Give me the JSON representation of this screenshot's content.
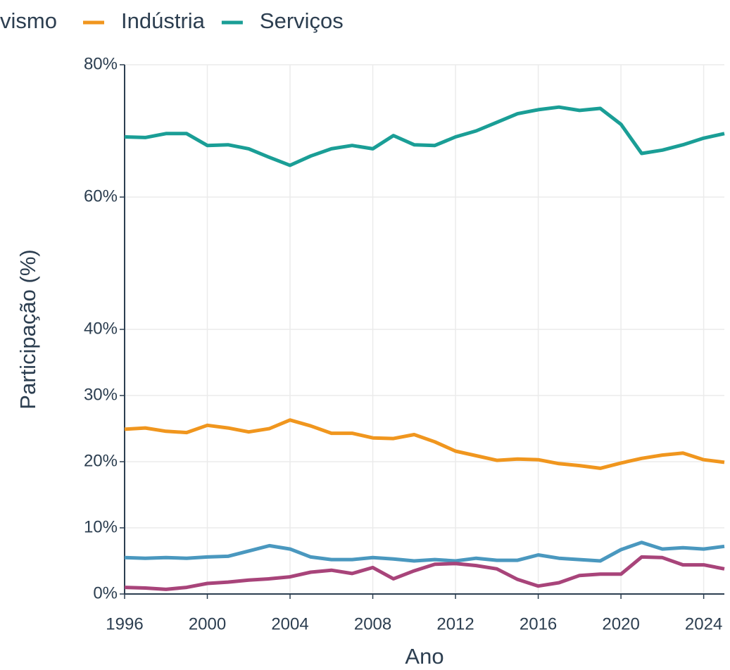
{
  "chart_data": {
    "type": "line",
    "legend_fragment": "vismo",
    "x_label": "Ano",
    "y_label": "Participação (%)",
    "x": [
      1996,
      1997,
      1998,
      1999,
      2000,
      2001,
      2002,
      2003,
      2004,
      2005,
      2006,
      2007,
      2008,
      2009,
      2010,
      2011,
      2012,
      2013,
      2014,
      2015,
      2016,
      2017,
      2018,
      2019,
      2020,
      2021,
      2022,
      2023,
      2024,
      2025
    ],
    "series": [
      {
        "name": "Indústria",
        "color": "#f0961e",
        "values": [
          24.9,
          25.1,
          24.6,
          24.4,
          25.5,
          25.1,
          24.5,
          25.0,
          26.3,
          25.4,
          24.3,
          24.3,
          23.6,
          23.5,
          24.1,
          23.0,
          21.6,
          20.9,
          20.2,
          20.4,
          20.3,
          19.7,
          19.4,
          19.0,
          19.8,
          20.5,
          21.0,
          21.3,
          20.3,
          19.9
        ]
      },
      {
        "name": "Serviços",
        "color": "#1a9e96",
        "values": [
          69.1,
          69.0,
          69.6,
          69.6,
          67.8,
          67.9,
          67.3,
          66.0,
          64.8,
          66.2,
          67.3,
          67.8,
          67.3,
          69.3,
          67.9,
          67.8,
          69.1,
          70.0,
          71.3,
          72.6,
          73.2,
          73.6,
          73.1,
          73.4,
          71.0,
          66.6,
          67.1,
          67.9,
          68.9,
          69.6
        ]
      },
      {
        "color": "#4a98bf",
        "values": [
          5.5,
          5.4,
          5.5,
          5.4,
          5.6,
          5.7,
          6.5,
          7.3,
          6.8,
          5.6,
          5.2,
          5.2,
          5.5,
          5.3,
          5.0,
          5.2,
          5.0,
          5.4,
          5.1,
          5.1,
          5.9,
          5.4,
          5.2,
          5.0,
          6.7,
          7.8,
          6.8,
          7.0,
          6.8,
          7.2
        ]
      },
      {
        "color": "#a8447a",
        "values": [
          1.0,
          0.9,
          0.7,
          1.0,
          1.6,
          1.8,
          2.1,
          2.3,
          2.6,
          3.3,
          3.6,
          3.1,
          4.0,
          2.3,
          3.5,
          4.5,
          4.6,
          4.3,
          3.8,
          2.2,
          1.2,
          1.7,
          2.8,
          3.0,
          3.0,
          5.6,
          5.5,
          4.4,
          4.4,
          3.8
        ]
      }
    ],
    "xlim": [
      1996,
      2025
    ],
    "xticks": [
      1996,
      2000,
      2004,
      2008,
      2012,
      2016,
      2020,
      2024
    ],
    "ylim": [
      0,
      80
    ],
    "yticks": [
      {
        "value": 0,
        "label": "0%"
      },
      {
        "value": 10,
        "label": "10%"
      },
      {
        "value": 20,
        "label": "20%"
      },
      {
        "value": 30,
        "label": "30%"
      },
      {
        "value": 40,
        "label": "40%"
      },
      {
        "value": 60,
        "label": "60%"
      },
      {
        "value": 80,
        "label": "80%"
      }
    ],
    "grid": true
  }
}
